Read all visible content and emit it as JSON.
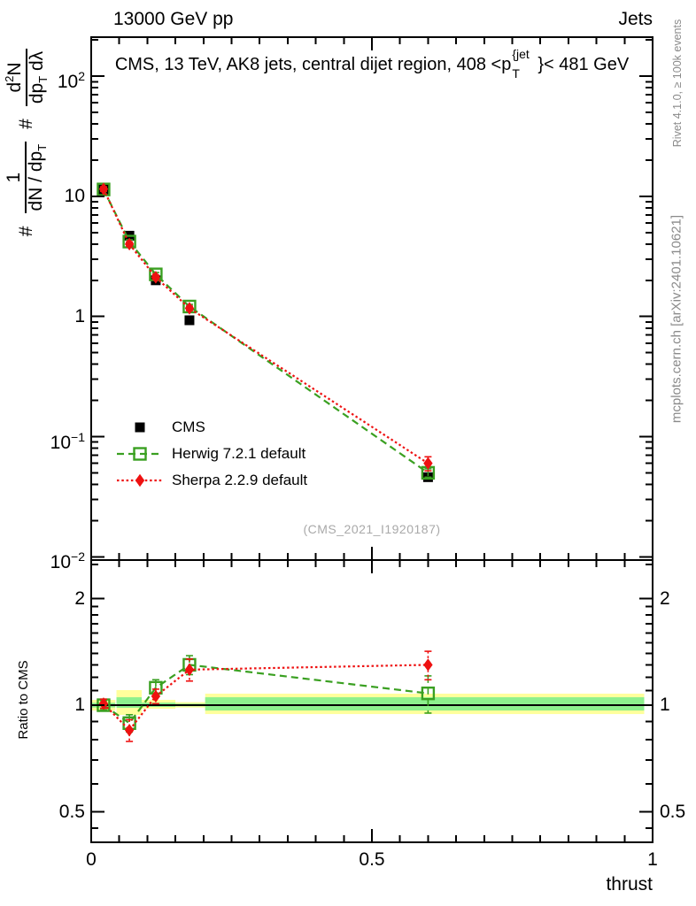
{
  "header": {
    "left": "13000 GeV pp",
    "right": "Jets"
  },
  "title": {
    "pre": "CMS, 13 TeV, AK8 jets, central dijet region, 408 <p",
    "sup": "{jet",
    "sub": "T",
    "post": "}< 481 GeV"
  },
  "y_axis_label": {
    "hash1": "#",
    "frac1_num": "1",
    "frac1_den_pre": "dN / dp",
    "frac1_den_sub": "T",
    "hash2": "#",
    "frac2_num_pre": "d",
    "frac2_num_sup": "2",
    "frac2_num_post": "N",
    "frac2_den_pre": "dp",
    "frac2_den_sub": "T",
    "frac2_den_post": " dλ"
  },
  "watermark": "(CMS_2021_I1920187)",
  "side_notes": {
    "top": "Rivet 4.1.0, ≥ 100k events",
    "bottom": "mcplots.cern.ch [arXiv:2401.10621]"
  },
  "colors": {
    "cms": "#000000",
    "herwig": "#3aa021",
    "sherpa": "#ee1111",
    "band_yellow": "#ffff9c",
    "band_green": "#8df08d",
    "gray_note": "#8a8a8a",
    "watermark_gray": "#a9a9a9"
  },
  "chart_data": {
    "type": "line",
    "xlabel": "thrust",
    "xlim": [
      0,
      1
    ],
    "x_ticks": [
      0,
      0.5,
      1
    ],
    "x_tick_labels": [
      "0",
      "0.5",
      "1"
    ],
    "x": [
      0.022,
      0.068,
      0.115,
      0.175,
      0.6
    ],
    "main_panel": {
      "ylog": true,
      "ylim": [
        0.0094,
        211
      ],
      "y_ticks": [
        {
          "value": 100,
          "base": "10",
          "exp": "2"
        },
        {
          "value": 10,
          "base": "10",
          "exp": ""
        },
        {
          "value": 1,
          "base": "1",
          "exp": ""
        },
        {
          "value": 0.1,
          "base": "10",
          "exp": "−1"
        },
        {
          "value": 0.01,
          "base": "10",
          "exp": "−2"
        }
      ],
      "series": [
        {
          "name": "CMS",
          "marker": "filled-square",
          "color": "#000000",
          "line": "none",
          "values": [
            11.4,
            4.7,
            2.0,
            0.93,
            0.046
          ],
          "errors": [
            0.5,
            0.2,
            0.09,
            0.045,
            0.003
          ]
        },
        {
          "name": "Herwig 7.2.1 default",
          "marker": "open-square",
          "color": "#3aa021",
          "line": "dashed",
          "values": [
            11.4,
            4.2,
            2.24,
            1.21,
            0.05
          ],
          "errors": [
            0.35,
            0.15,
            0.08,
            0.05,
            0.004
          ]
        },
        {
          "name": "Sherpa 2.2.9 default",
          "marker": "filled-diamond",
          "color": "#ee1111",
          "line": "dotted",
          "values": [
            11.5,
            4.0,
            2.12,
            1.17,
            0.06
          ],
          "errors": [
            0.5,
            0.18,
            0.09,
            0.05,
            0.008
          ]
        }
      ]
    },
    "ratio_panel": {
      "ylabel": "Ratio to CMS",
      "ylog": true,
      "ylim": [
        0.41,
        2.57
      ],
      "y_ticks": [
        2,
        1,
        0.5
      ],
      "y_tick_labels": [
        "2",
        "1",
        "0.5"
      ],
      "unity": 1,
      "series": [
        {
          "name": "Herwig 7.2.1 default",
          "marker": "open-square",
          "color": "#3aa021",
          "line": "dashed",
          "values": [
            1.0,
            0.89,
            1.12,
            1.3,
            1.08
          ],
          "errors": [
            0.03,
            0.05,
            0.06,
            0.08,
            0.13
          ]
        },
        {
          "name": "Sherpa 2.2.9 default",
          "marker": "filled-diamond",
          "color": "#ee1111",
          "line": "dotted",
          "values": [
            1.01,
            0.85,
            1.06,
            1.26,
            1.3
          ],
          "errors": [
            0.03,
            0.06,
            0.05,
            0.09,
            0.12
          ]
        }
      ],
      "bands": {
        "yellow": [
          [
            0.0,
            0.043,
            0.966,
            1.035
          ],
          [
            0.045,
            0.09,
            0.939,
            1.103
          ],
          [
            0.09,
            0.15,
            0.977,
            1.035
          ],
          [
            0.15,
            0.203,
            0.985,
            1.02
          ],
          [
            0.203,
            0.985,
            0.944,
            1.078
          ]
        ],
        "green": [
          [
            0.0,
            0.043,
            0.985,
            1.016
          ],
          [
            0.045,
            0.09,
            0.983,
            1.053
          ],
          [
            0.09,
            0.15,
            0.989,
            1.017
          ],
          [
            0.15,
            0.203,
            0.993,
            1.01
          ],
          [
            0.203,
            0.985,
            0.966,
            1.053
          ]
        ]
      }
    }
  }
}
